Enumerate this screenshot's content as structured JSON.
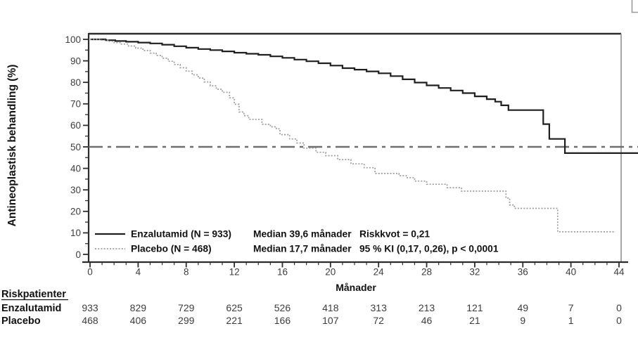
{
  "figure": {
    "y_axis_title": "Antineoplastisk behandling (%)",
    "x_axis_title": "Månader"
  },
  "chart_data": {
    "type": "line",
    "subtype": "kaplan-meier-step",
    "xlabel": "Månader",
    "ylabel": "Antineoplastisk behandling (%)",
    "xlim": [
      0,
      44
    ],
    "ylim": [
      0,
      100
    ],
    "x_major_ticks": [
      0,
      4,
      8,
      12,
      16,
      20,
      24,
      28,
      32,
      36,
      40,
      44
    ],
    "x_minor_tick_interval": 1,
    "y_major_ticks": [
      100,
      90,
      80,
      70,
      60,
      50,
      40,
      30,
      20,
      10,
      0
    ],
    "y_minor_tick_interval": 5,
    "grid": false,
    "reference_line": {
      "y": 50,
      "style": "dash-dot",
      "color": "#6f6f6f",
      "extend_to_edge": true
    },
    "series": [
      {
        "name": "Enzalutamid",
        "n": 933,
        "median_months": "39,6",
        "style": "solid",
        "color": "#1f1f1f",
        "extend_to_edge": true,
        "points": [
          [
            0,
            100
          ],
          [
            1.3,
            99.6
          ],
          [
            2.1,
            99.2
          ],
          [
            3,
            98.9
          ],
          [
            4,
            98.5
          ],
          [
            5,
            98.1
          ],
          [
            6,
            97.5
          ],
          [
            7,
            96.8
          ],
          [
            8,
            96.1
          ],
          [
            9,
            95.5
          ],
          [
            10,
            95
          ],
          [
            11,
            94.4
          ],
          [
            12,
            93.8
          ],
          [
            13,
            93.3
          ],
          [
            14,
            92.8
          ],
          [
            15,
            92.1
          ],
          [
            16,
            91.4
          ],
          [
            17,
            90.6
          ],
          [
            18,
            89.8
          ],
          [
            19,
            88.9
          ],
          [
            20,
            87.8
          ],
          [
            21,
            86.6
          ],
          [
            22,
            85.9
          ],
          [
            23,
            85.1
          ],
          [
            24,
            84.2
          ],
          [
            25,
            82.9
          ],
          [
            26,
            81.4
          ],
          [
            27,
            79.9
          ],
          [
            28,
            78.6
          ],
          [
            29,
            77.4
          ],
          [
            30,
            76.2
          ],
          [
            31,
            75
          ],
          [
            32,
            73.5
          ],
          [
            33,
            72.2
          ],
          [
            33.7,
            71
          ],
          [
            34.2,
            69.3
          ],
          [
            34.8,
            67.1
          ],
          [
            37.7,
            60.6
          ],
          [
            38.2,
            53.7
          ],
          [
            39.5,
            47.1
          ],
          [
            44,
            47.1
          ]
        ]
      },
      {
        "name": "Placebo",
        "n": 468,
        "median_months": "17,7",
        "style": "dotted",
        "color": "#9c9c9c",
        "extend_to_edge": false,
        "points": [
          [
            0,
            100
          ],
          [
            0.9,
            99.6
          ],
          [
            1.5,
            99.1
          ],
          [
            2,
            98.5
          ],
          [
            2.6,
            97.8
          ],
          [
            3.2,
            96.9
          ],
          [
            3.8,
            95.9
          ],
          [
            4.4,
            94.8
          ],
          [
            5,
            93.6
          ],
          [
            5.5,
            92.5
          ],
          [
            6,
            91.2
          ],
          [
            6.5,
            89.8
          ],
          [
            7,
            88.3
          ],
          [
            7.5,
            86.8
          ],
          [
            8,
            85.2
          ],
          [
            8.5,
            83.5
          ],
          [
            9,
            82
          ],
          [
            9.5,
            80.2
          ],
          [
            10,
            78.4
          ],
          [
            10.5,
            76.8
          ],
          [
            11,
            75.4
          ],
          [
            11.6,
            72.8
          ],
          [
            12,
            69.8
          ],
          [
            12.4,
            66.2
          ],
          [
            12.8,
            64.5
          ],
          [
            13.2,
            62.8
          ],
          [
            14.3,
            60.5
          ],
          [
            15,
            59.3
          ],
          [
            15.5,
            58.4
          ],
          [
            15.8,
            55.7
          ],
          [
            16.6,
            53.7
          ],
          [
            17.2,
            51.8
          ],
          [
            17.8,
            49.4
          ],
          [
            18.8,
            47.5
          ],
          [
            19.6,
            45.9
          ],
          [
            20.6,
            44.1
          ],
          [
            21.7,
            42.1
          ],
          [
            22.8,
            40.3
          ],
          [
            23.7,
            37.6
          ],
          [
            25.7,
            36.6
          ],
          [
            26.3,
            35.7
          ],
          [
            27,
            34.1
          ],
          [
            28,
            32.6
          ],
          [
            29.7,
            31
          ],
          [
            30.9,
            29.4
          ],
          [
            34.6,
            26.2
          ],
          [
            34.9,
            23
          ],
          [
            35.3,
            21.4
          ],
          [
            38.9,
            10.5
          ],
          [
            43.7,
            10.5
          ]
        ]
      }
    ]
  },
  "legend": {
    "rows": [
      {
        "label": "Enzalutamid (N = 933)",
        "median": "Median 39,6 månader",
        "stat": "Riskkvot = 0,21"
      },
      {
        "label": "Placebo (N = 468)",
        "median": "Median 17,7 månader",
        "stat": "95 % KI (0,17, 0,26), p < 0,0001"
      }
    ]
  },
  "risk_table": {
    "title": "Riskpatienter",
    "rows": [
      {
        "label": "Enzalutamid",
        "counts": [
          933,
          829,
          729,
          625,
          526,
          418,
          313,
          213,
          121,
          49,
          7,
          0
        ]
      },
      {
        "label": "Placebo",
        "counts": [
          468,
          406,
          299,
          221,
          166,
          107,
          72,
          46,
          21,
          9,
          1,
          0
        ]
      }
    ]
  },
  "colors": {
    "frame": "#2b2b2b",
    "right_frame": "#8a8a8a",
    "ticks_and_labels": "#3d3d3d",
    "enzalutamid_curve": "#1f1f1f",
    "placebo_curve": "#9c9c9c",
    "reference_line": "#6f6f6f",
    "corner_artifact": "#9a9a9a"
  }
}
